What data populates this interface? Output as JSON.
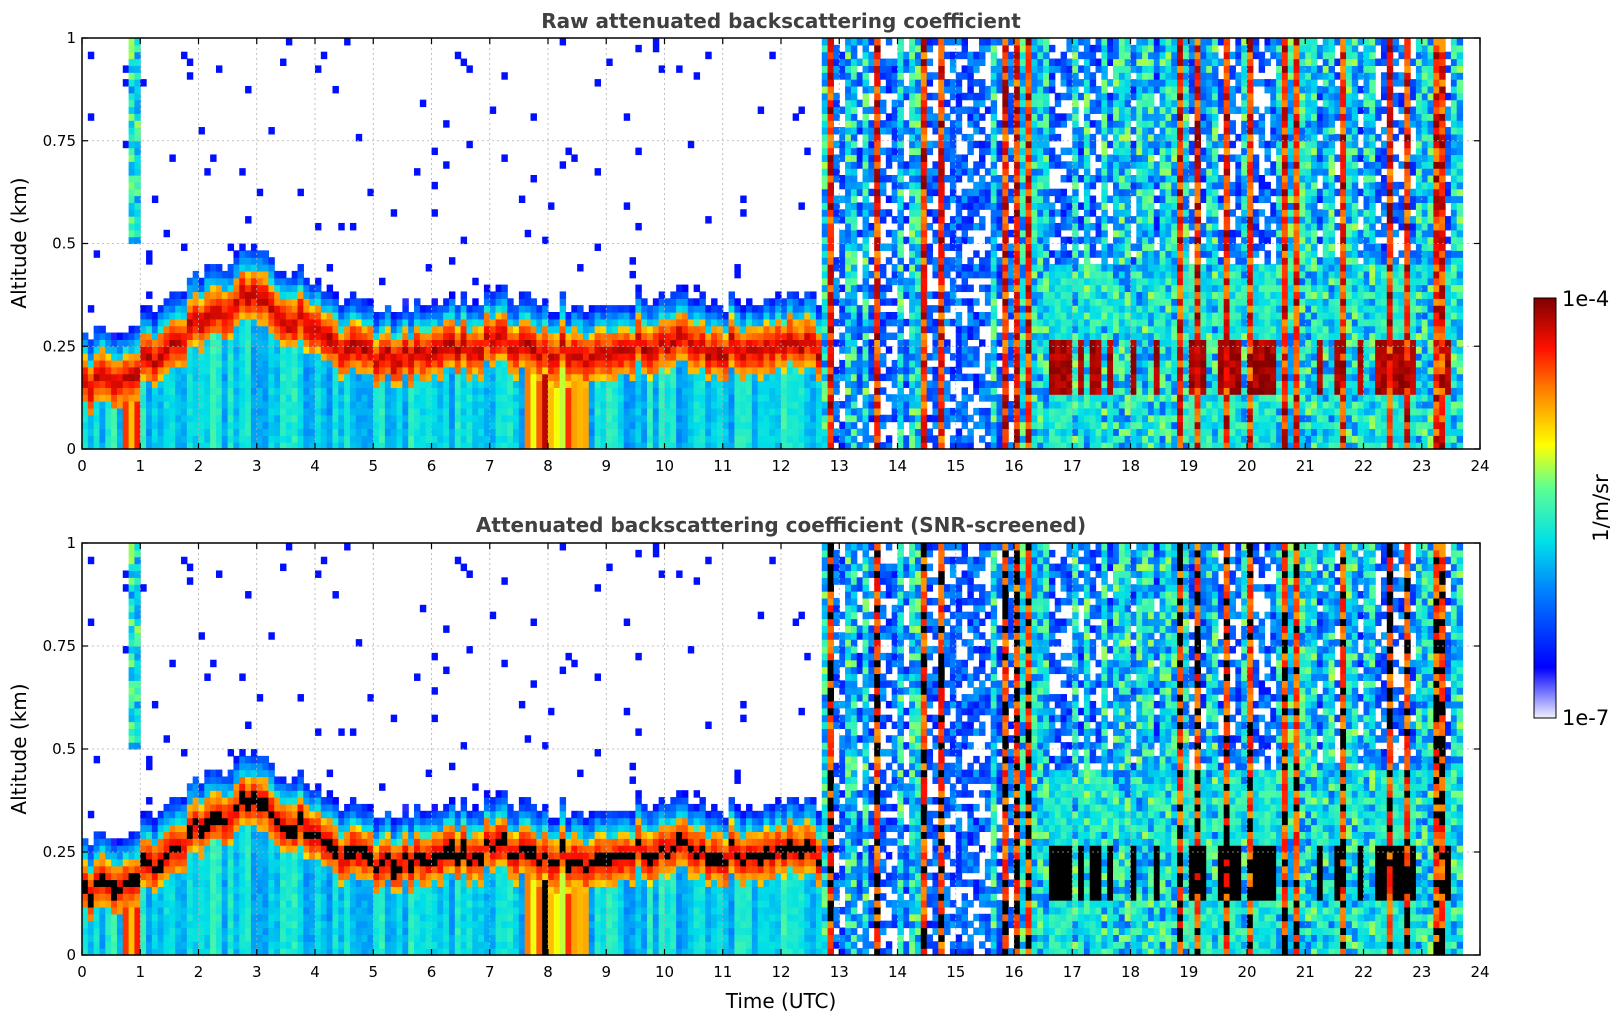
{
  "chart_data": [
    {
      "type": "heatmap",
      "title": "Raw attenuated backscattering coefficient",
      "xlabel": "",
      "ylabel": "Altitude (km)",
      "xlim": [
        0,
        24
      ],
      "ylim": [
        0,
        1
      ],
      "xticks": [
        "0",
        "1",
        "2",
        "3",
        "4",
        "5",
        "6",
        "7",
        "8",
        "9",
        "10",
        "11",
        "12",
        "13",
        "14",
        "15",
        "16",
        "17",
        "18",
        "19",
        "20",
        "21",
        "22",
        "23",
        "24"
      ],
      "yticks": [
        "0",
        "0.25",
        "0.5",
        "0.75",
        "1"
      ],
      "grid": true,
      "layer_height_km": [
        [
          0,
          0.16
        ],
        [
          1,
          0.2
        ],
        [
          2,
          0.3
        ],
        [
          3,
          0.38
        ],
        [
          4,
          0.28
        ],
        [
          5,
          0.22
        ],
        [
          6,
          0.24
        ],
        [
          7,
          0.26
        ],
        [
          8,
          0.24
        ],
        [
          9,
          0.23
        ],
        [
          10,
          0.26
        ],
        [
          11,
          0.24
        ],
        [
          12,
          0.26
        ],
        [
          12.7,
          0.24
        ],
        [
          24,
          0.24
        ]
      ],
      "cloud_regime_start_utc": 12.7,
      "data_end_utc": 23.75
    },
    {
      "type": "heatmap",
      "title": "Attenuated backscattering coefficient (SNR-screened)",
      "xlabel": "Time (UTC)",
      "ylabel": "Altitude (km)",
      "xlim": [
        0,
        24
      ],
      "ylim": [
        0,
        1
      ],
      "xticks": [
        "0",
        "1",
        "2",
        "3",
        "4",
        "5",
        "6",
        "7",
        "8",
        "9",
        "10",
        "11",
        "12",
        "13",
        "14",
        "15",
        "16",
        "17",
        "18",
        "19",
        "20",
        "21",
        "22",
        "23",
        "24"
      ],
      "yticks": [
        "0",
        "0.25",
        "0.5",
        "0.75",
        "1"
      ],
      "grid": true,
      "screened_saturation_color": "#000000"
    }
  ],
  "colorbar": {
    "label": "1/m/sr",
    "max_label": "1e-4",
    "min_label": "1e-7",
    "scale": "log",
    "range": [
      1e-07,
      0.0001
    ],
    "colormap": "jet"
  }
}
